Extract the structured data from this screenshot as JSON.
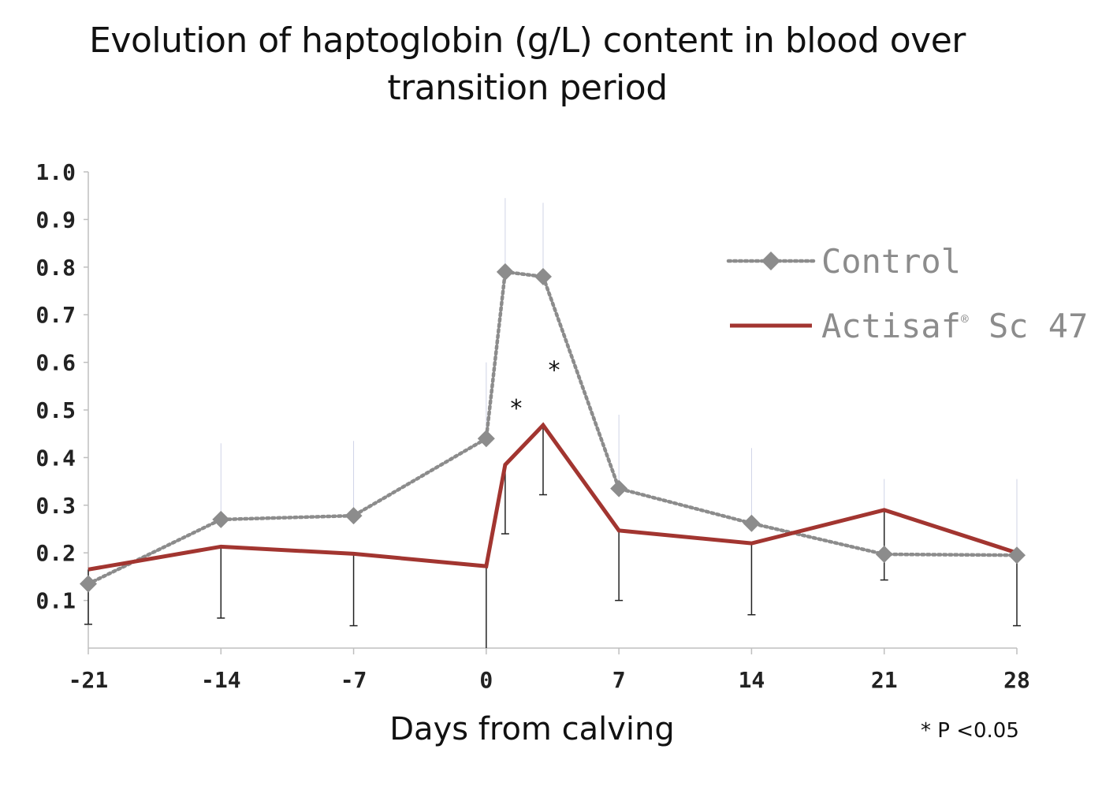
{
  "chart_data": {
    "type": "line",
    "title_lines": [
      "Evolution of haptoglobin (g/L) content in blood over",
      "transition period"
    ],
    "xlabel": "Days from calving",
    "ylabel": "",
    "xlim": [
      -21,
      28
    ],
    "ylim": [
      0.0,
      1.0
    ],
    "x_ticks": [
      -21,
      -14,
      -7,
      0,
      7,
      14,
      21,
      28
    ],
    "x_tick_labels": [
      "-21",
      "-14",
      "-7",
      "0",
      "7",
      "14",
      "21",
      "28"
    ],
    "y_ticks": [
      0.1,
      0.2,
      0.3,
      0.4,
      0.5,
      0.6,
      0.7,
      0.8,
      0.9,
      1.0
    ],
    "y_tick_labels": [
      "0.1",
      "0.2",
      "0.3",
      "0.4",
      "0.5",
      "0.6",
      "0.7",
      "0.8",
      "0.9",
      "1.0"
    ],
    "grid": false,
    "legend_position": "top-right",
    "series": [
      {
        "name": "Control",
        "style": "dotted",
        "marker": "diamond",
        "color": "#8c8c8c",
        "x": [
          -21,
          -14,
          -7,
          0,
          1,
          3,
          7,
          14,
          21,
          28
        ],
        "y": [
          0.135,
          0.27,
          0.278,
          0.44,
          0.79,
          0.78,
          0.335,
          0.262,
          0.197,
          0.195
        ],
        "error_upper": [
          null,
          0.43,
          0.435,
          0.6,
          0.945,
          0.935,
          0.49,
          0.42,
          0.355,
          0.355
        ]
      },
      {
        "name": "Actisaf",
        "name_superscript": "®",
        "name_suffix": " Sc 47",
        "style": "solid",
        "color": "#a23530",
        "x": [
          -21,
          -14,
          -7,
          0,
          1,
          3,
          7,
          14,
          21,
          28
        ],
        "y": [
          0.165,
          0.213,
          0.198,
          0.172,
          0.385,
          0.468,
          0.247,
          0.22,
          0.29,
          0.2
        ],
        "error_lower": [
          0.05,
          0.063,
          0.047,
          0.0,
          0.24,
          0.322,
          0.1,
          0.07,
          0.143,
          0.047
        ]
      }
    ],
    "annotations": [
      {
        "text": "*",
        "x": 1,
        "y": 0.52
      },
      {
        "text": "*",
        "x": 3,
        "y": 0.6
      }
    ],
    "footnote": "* P <0.05"
  }
}
